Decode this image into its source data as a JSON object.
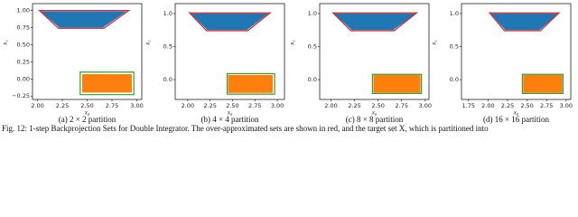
{
  "charts": [
    {
      "type": "region",
      "caption": "(a) 2 × 2 partition",
      "xlabel": "x₀",
      "ylabel": "x₁",
      "xlim": [
        1.95,
        3.05
      ],
      "ylim": [
        -0.3,
        1.1
      ],
      "xticks": [
        {
          "value": 2,
          "label": "2.00"
        },
        2.25,
        {
          "value": 2.5,
          "label": "2.50"
        },
        2.75,
        {
          "value": 3,
          "label": "3.00"
        }
      ],
      "yticks": [
        {
          "value": -0.25,
          "label": "−0.25"
        },
        {
          "value": 0,
          "label": "0.00"
        },
        0.25,
        {
          "value": 0.5,
          "label": "0.50"
        },
        0.75,
        {
          "value": 1,
          "label": "1.00"
        }
      ],
      "shapes": [
        {
          "x": [
            2.03,
            2.9,
            2.66,
            2.22
          ],
          "y": [
            0.99,
            0.99,
            0.75,
            0.75
          ],
          "fill": "#1f77b4",
          "stroke": "none"
        },
        {
          "x": [
            2.02,
            2.92,
            2.67,
            2.21
          ],
          "y": [
            1.0,
            1.0,
            0.74,
            0.74
          ],
          "fill": "none",
          "stroke": "#d62728"
        },
        {
          "x": [
            2.45,
            2.95,
            2.95,
            2.45
          ],
          "y": [
            -0.2,
            -0.2,
            0.07,
            0.07
          ],
          "fill": "#ff7f0e",
          "stroke": "none"
        },
        {
          "x": [
            2.43,
            2.97,
            2.97,
            2.43
          ],
          "y": [
            -0.23,
            -0.23,
            0.1,
            0.1
          ],
          "fill": "none",
          "stroke": "#2ca02c"
        }
      ]
    },
    {
      "type": "region",
      "caption": "(b) 4 × 4 partition",
      "xlabel": "x₀",
      "ylabel": "x₁",
      "xlim": [
        1.86,
        3.08
      ],
      "ylim": [
        -0.3,
        1.15
      ],
      "xticks": [
        {
          "value": 2,
          "label": "2.00"
        },
        2.25,
        {
          "value": 2.5,
          "label": "2.50"
        },
        2.75,
        {
          "value": 3,
          "label": "3.00"
        }
      ],
      "yticks": [
        {
          "value": 0,
          "label": "0.0"
        },
        0.5,
        {
          "value": 1,
          "label": "1.0"
        }
      ],
      "shapes": [
        {
          "x": [
            2.03,
            2.9,
            2.66,
            2.22
          ],
          "y": [
            1.0,
            1.0,
            0.75,
            0.75
          ],
          "fill": "#1f77b4",
          "stroke": "none"
        },
        {
          "x": [
            2.02,
            2.92,
            2.67,
            2.21
          ],
          "y": [
            1.01,
            1.01,
            0.74,
            0.74
          ],
          "fill": "none",
          "stroke": "#d62728"
        },
        {
          "x": [
            2.45,
            2.95,
            2.95,
            2.45
          ],
          "y": [
            -0.2,
            -0.2,
            0.07,
            0.07
          ],
          "fill": "#ff7f0e",
          "stroke": "none"
        },
        {
          "x": [
            2.44,
            2.97,
            2.97,
            2.44
          ],
          "y": [
            -0.22,
            -0.22,
            0.09,
            0.09
          ],
          "fill": "none",
          "stroke": "#2ca02c"
        }
      ]
    },
    {
      "type": "region",
      "caption": "(c) 8 × 8 partition",
      "xlabel": "x₀",
      "ylabel": "x₁",
      "xlim": [
        1.88,
        3.04
      ],
      "ylim": [
        -0.3,
        1.15
      ],
      "xticks": [
        {
          "value": 2,
          "label": "2.00"
        },
        2.25,
        {
          "value": 2.5,
          "label": "2.50"
        },
        2.75,
        {
          "value": 3,
          "label": "3.00"
        }
      ],
      "yticks": [
        {
          "value": 0,
          "label": "0.0"
        },
        0.5,
        {
          "value": 1,
          "label": "1.0"
        }
      ],
      "shapes": [
        {
          "x": [
            2.03,
            2.9,
            2.66,
            2.22
          ],
          "y": [
            1.0,
            1.0,
            0.75,
            0.75
          ],
          "fill": "#1f77b4",
          "stroke": "none"
        },
        {
          "x": [
            2.02,
            2.91,
            2.67,
            2.21
          ],
          "y": [
            1.01,
            1.01,
            0.74,
            0.74
          ],
          "fill": "none",
          "stroke": "#d62728"
        },
        {
          "x": [
            2.45,
            2.95,
            2.95,
            2.45
          ],
          "y": [
            -0.2,
            -0.2,
            0.07,
            0.07
          ],
          "fill": "#ff7f0e",
          "stroke": "none"
        },
        {
          "x": [
            2.44,
            2.96,
            2.96,
            2.44
          ],
          "y": [
            -0.21,
            -0.21,
            0.08,
            0.08
          ],
          "fill": "none",
          "stroke": "#2ca02c"
        }
      ]
    },
    {
      "type": "region",
      "caption": "(d) 16 × 16 partition",
      "xlabel": "x₀",
      "ylabel": "x₁",
      "xlim": [
        1.66,
        3.06
      ],
      "ylim": [
        -0.3,
        1.15
      ],
      "xticks": [
        1.75,
        {
          "value": 2,
          "label": "2.00"
        },
        2.25,
        {
          "value": 2.5,
          "label": "2.50"
        },
        2.75,
        {
          "value": 3,
          "label": "3.00"
        }
      ],
      "yticks": [
        {
          "value": 0,
          "label": "0.0"
        },
        0.5,
        {
          "value": 1,
          "label": "1.0"
        }
      ],
      "shapes": [
        {
          "x": [
            2.03,
            2.9,
            2.66,
            2.22
          ],
          "y": [
            1.0,
            1.0,
            0.75,
            0.75
          ],
          "fill": "#1f77b4",
          "stroke": "none"
        },
        {
          "x": [
            2.02,
            2.91,
            2.67,
            2.21
          ],
          "y": [
            1.01,
            1.01,
            0.74,
            0.74
          ],
          "fill": "none",
          "stroke": "#d62728"
        },
        {
          "x": [
            2.45,
            2.95,
            2.95,
            2.45
          ],
          "y": [
            -0.2,
            -0.2,
            0.07,
            0.07
          ],
          "fill": "#ff7f0e",
          "stroke": "none"
        },
        {
          "x": [
            2.44,
            2.96,
            2.96,
            2.44
          ],
          "y": [
            -0.21,
            -0.21,
            0.08,
            0.08
          ],
          "fill": "none",
          "stroke": "#2ca02c"
        }
      ]
    }
  ],
  "figure_caption": "Fig. 12: 1-step Backprojection Sets for Double Integrator. The over-approximated sets are shown in red, and the target set X, which is partitioned into"
}
